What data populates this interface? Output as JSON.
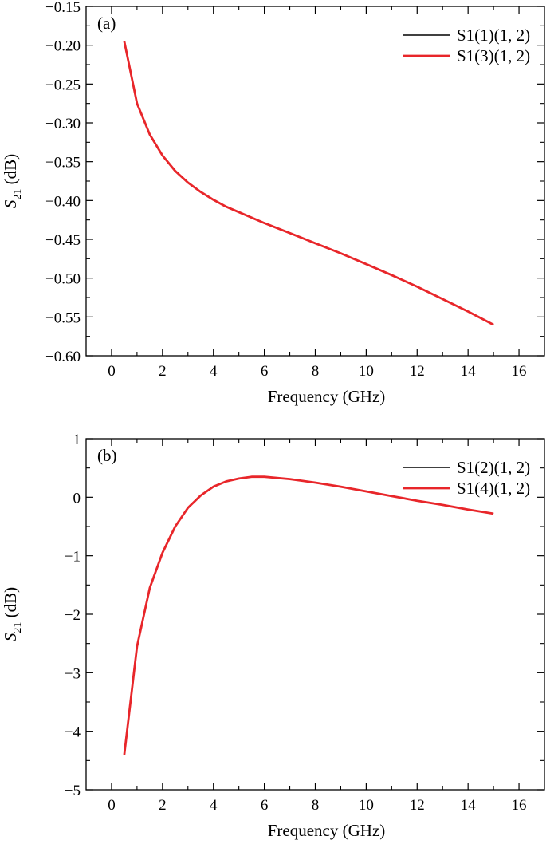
{
  "colors": {
    "axis": "#000000",
    "series_black": "#000000",
    "series_red": "#e8262a"
  },
  "chart_data": [
    {
      "type": "line",
      "panel_label": "(a)",
      "xlabel": "Frequency (GHz)",
      "ylabel_main": "S",
      "ylabel_sub": "21",
      "ylabel_unit": " (dB)",
      "xlim": [
        -1,
        17
      ],
      "ylim": [
        -0.6,
        -0.15
      ],
      "xticks": [
        0,
        2,
        4,
        6,
        8,
        10,
        12,
        14,
        16
      ],
      "xtick_labels": [
        "0",
        "2",
        "4",
        "6",
        "8",
        "10",
        "12",
        "14",
        "16"
      ],
      "yticks": [
        -0.6,
        -0.55,
        -0.5,
        -0.45,
        -0.4,
        -0.35,
        -0.3,
        -0.25,
        -0.2,
        -0.15
      ],
      "ytick_labels": [
        "−0.60",
        "−0.55",
        "−0.50",
        "−0.45",
        "−0.40",
        "−0.35",
        "−0.30",
        "−0.25",
        "−0.20",
        "−0.15"
      ],
      "legend_position": "top-right",
      "series": [
        {
          "name": "S1(1)(1, 2)",
          "color": "#000000",
          "x": [
            0.5,
            1,
            1.5,
            2,
            2.5,
            3,
            3.5,
            4,
            4.5,
            5,
            6,
            7,
            8,
            9,
            10,
            11,
            12,
            13,
            14,
            15
          ],
          "y": [
            -0.195,
            -0.275,
            -0.315,
            -0.342,
            -0.362,
            -0.377,
            -0.389,
            -0.399,
            -0.408,
            -0.415,
            -0.429,
            -0.442,
            -0.455,
            -0.468,
            -0.482,
            -0.496,
            -0.511,
            -0.527,
            -0.543,
            -0.56
          ]
        },
        {
          "name": "S1(3)(1, 2)",
          "color": "#e8262a",
          "x": [
            0.5,
            1,
            1.5,
            2,
            2.5,
            3,
            3.5,
            4,
            4.5,
            5,
            6,
            7,
            8,
            9,
            10,
            11,
            12,
            13,
            14,
            15
          ],
          "y": [
            -0.195,
            -0.275,
            -0.315,
            -0.342,
            -0.362,
            -0.377,
            -0.389,
            -0.399,
            -0.408,
            -0.415,
            -0.429,
            -0.442,
            -0.455,
            -0.468,
            -0.482,
            -0.496,
            -0.511,
            -0.527,
            -0.543,
            -0.56
          ]
        }
      ]
    },
    {
      "type": "line",
      "panel_label": "(b)",
      "xlabel": "Frequency (GHz)",
      "ylabel_main": "S",
      "ylabel_sub": "21",
      "ylabel_unit": " (dB)",
      "xlim": [
        -1,
        17
      ],
      "ylim": [
        -5,
        1
      ],
      "xticks": [
        0,
        2,
        4,
        6,
        8,
        10,
        12,
        14,
        16
      ],
      "xtick_labels": [
        "0",
        "2",
        "4",
        "6",
        "8",
        "10",
        "12",
        "14",
        "16"
      ],
      "yticks": [
        -5,
        -4,
        -3,
        -2,
        -1,
        0,
        1
      ],
      "ytick_labels": [
        "−5",
        "−4",
        "−3",
        "−2",
        "−1",
        "0",
        "1"
      ],
      "legend_position": "top-right",
      "series": [
        {
          "name": "S1(2)(1, 2)",
          "color": "#000000",
          "x": [
            0.5,
            1,
            1.5,
            2,
            2.5,
            3,
            3.5,
            4,
            4.5,
            5,
            5.5,
            6,
            7,
            8,
            9,
            10,
            11,
            12,
            13,
            14,
            15
          ],
          "y": [
            -4.4,
            -2.55,
            -1.55,
            -0.95,
            -0.5,
            -0.18,
            0.03,
            0.18,
            0.27,
            0.32,
            0.35,
            0.35,
            0.31,
            0.25,
            0.18,
            0.1,
            0.02,
            -0.06,
            -0.13,
            -0.21,
            -0.28
          ]
        },
        {
          "name": "S1(4)(1, 2)",
          "color": "#e8262a",
          "x": [
            0.5,
            1,
            1.5,
            2,
            2.5,
            3,
            3.5,
            4,
            4.5,
            5,
            5.5,
            6,
            7,
            8,
            9,
            10,
            11,
            12,
            13,
            14,
            15
          ],
          "y": [
            -4.4,
            -2.55,
            -1.55,
            -0.95,
            -0.5,
            -0.18,
            0.03,
            0.18,
            0.27,
            0.32,
            0.35,
            0.35,
            0.31,
            0.25,
            0.18,
            0.1,
            0.02,
            -0.06,
            -0.13,
            -0.21,
            -0.28
          ]
        }
      ]
    }
  ]
}
